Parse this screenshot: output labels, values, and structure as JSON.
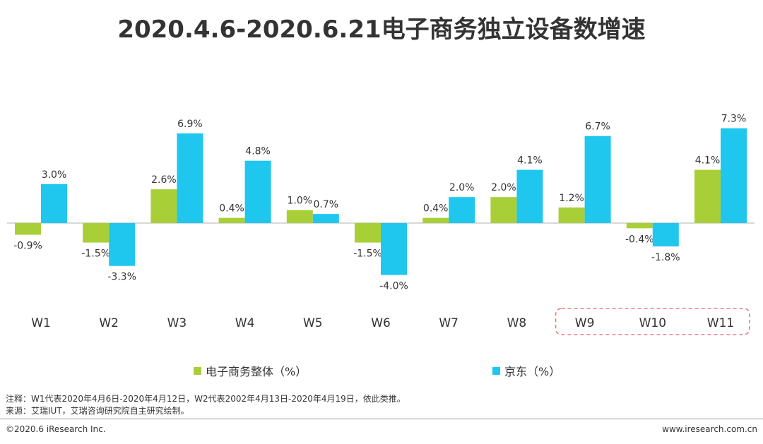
{
  "title": "2020.4.6-2020.6.21电子商务独立设备数增速",
  "colors": {
    "series1": "#a9cf38",
    "series2": "#1fc7ef",
    "highlight": "#e87d7d",
    "axis": "#b0b0b0"
  },
  "chart_data": {
    "type": "bar",
    "title": "2020.4.6-2020.6.21电子商务独立设备数增速",
    "categories": [
      "W1",
      "W2",
      "W3",
      "W4",
      "W5",
      "W6",
      "W7",
      "W8",
      "W9",
      "W10",
      "W11"
    ],
    "series": [
      {
        "name": "电子商务整体（%）",
        "values": [
          -0.9,
          -1.5,
          2.6,
          0.4,
          1.0,
          -1.5,
          0.4,
          2.0,
          1.2,
          -0.4,
          4.1
        ],
        "labels": [
          "-0.9%",
          "-1.5%",
          "2.6%",
          "0.4%",
          "1.0%",
          "-1.5%",
          "0.4%",
          "2.0%",
          "1.2%",
          "-0.4%",
          "4.1%"
        ]
      },
      {
        "name": "京东（%）",
        "values": [
          3.0,
          -3.3,
          6.9,
          4.8,
          0.7,
          -4.0,
          2.0,
          4.1,
          6.7,
          -1.8,
          7.3
        ],
        "labels": [
          "3.0%",
          "-3.3%",
          "6.9%",
          "4.8%",
          "0.7%",
          "-4.0%",
          "2.0%",
          "4.1%",
          "6.7%",
          "-1.8%",
          "7.3%"
        ]
      }
    ],
    "highlighted_categories": [
      "W9",
      "W10",
      "W11"
    ],
    "xlabel": "",
    "ylabel": "",
    "ylim": [
      -4.0,
      7.3
    ],
    "legend_position": "bottom"
  },
  "legend": {
    "series1": "电子商务整体（%）",
    "series2": "京东（%）"
  },
  "notes": {
    "note": "注释：W1代表2020年4月6日-2020年4月12日，W2代表2002年4月13日-2020年4月19日，依此类推。",
    "source": "来源：艾瑞IUT，艾瑞咨询研究院自主研究绘制。"
  },
  "footer": {
    "copyright": "©2020.6 iResearch Inc.",
    "website": "www.iresearch.com.cn"
  }
}
